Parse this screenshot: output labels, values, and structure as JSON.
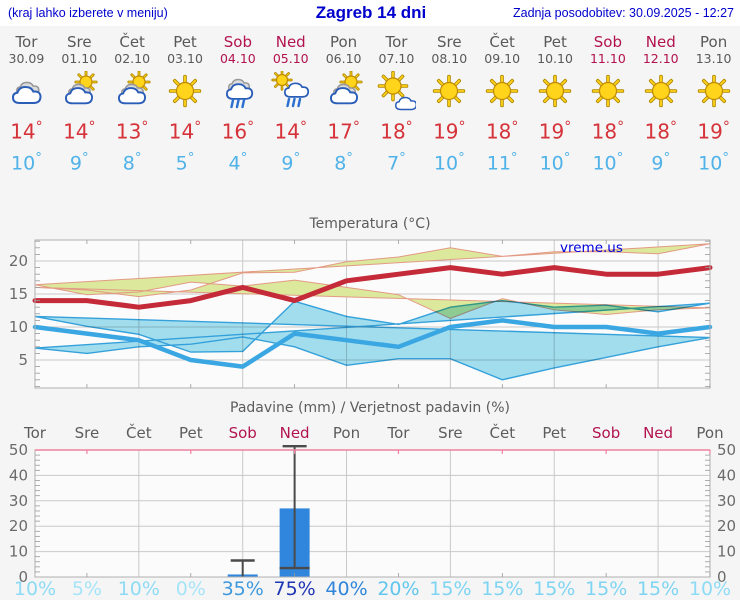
{
  "header": {
    "left_note": "(kraj lahko izberete v meniju)",
    "title": "Zagreb 14 dni",
    "updated": "Zadnja posodobitev: 30.09.2025 - 12:27"
  },
  "watermark": "vreme.us",
  "colors": {
    "header_blue": "#0000cd",
    "text_gray": "#595959",
    "label_gray": "#666666",
    "weekend_red": "#b2134f",
    "tmax_red": "#d53239",
    "tmin_blue": "#4fb2e8",
    "page_bg": "#f5f5f5",
    "plot_bg": "#fbfbfb",
    "grid": "#c9c9c9",
    "axis": "#b0b0b0",
    "tick": "#9a9a9a",
    "band_warm_fill": "#dce89c",
    "band_warm_edge": "#e39a84",
    "band_cold_fill": "#a5e1f2",
    "band_cold_edge": "#36a4de",
    "line_max": "#c42a38",
    "line_min": "#3aa7e2",
    "bar_blue": "#2f86dc",
    "whisker": "#4a4a4a",
    "precip_top": "#f0809d",
    "watermark_blue": "#0000dd",
    "prob_colors": {
      "0": "#a6e4f8",
      "5": "#a6e4f8",
      "10": "#8edbf5",
      "15": "#7ed4f3",
      "20": "#60c6ee",
      "35": "#3f99dd",
      "40": "#3085d9",
      "75": "#1e36b4"
    }
  },
  "days": [
    {
      "name": "Tor",
      "date": "30.09",
      "weekend": false,
      "icon": "cloudy",
      "tmax": "14",
      "tmin": "10",
      "prob": "10%"
    },
    {
      "name": "Sre",
      "date": "01.10",
      "weekend": false,
      "icon": "partly-cloudy",
      "tmax": "14",
      "tmin": "9",
      "prob": "5%"
    },
    {
      "name": "Čet",
      "date": "02.10",
      "weekend": false,
      "icon": "partly-cloudy",
      "tmax": "13",
      "tmin": "8",
      "prob": "10%"
    },
    {
      "name": "Pet",
      "date": "03.10",
      "weekend": false,
      "icon": "sunny",
      "tmax": "14",
      "tmin": "5",
      "prob": "0%"
    },
    {
      "name": "Sob",
      "date": "04.10",
      "weekend": true,
      "icon": "rain",
      "tmax": "16",
      "tmin": "4",
      "prob": "35%"
    },
    {
      "name": "Ned",
      "date": "05.10",
      "weekend": true,
      "icon": "sun-shower",
      "tmax": "14",
      "tmin": "9",
      "prob": "75%"
    },
    {
      "name": "Pon",
      "date": "06.10",
      "weekend": false,
      "icon": "partly-cloudy",
      "tmax": "17",
      "tmin": "8",
      "prob": "40%"
    },
    {
      "name": "Tor",
      "date": "07.10",
      "weekend": false,
      "icon": "mostly-sunny",
      "tmax": "18",
      "tmin": "7",
      "prob": "20%"
    },
    {
      "name": "Sre",
      "date": "08.10",
      "weekend": false,
      "icon": "sunny",
      "tmax": "19",
      "tmin": "10",
      "prob": "15%"
    },
    {
      "name": "Čet",
      "date": "09.10",
      "weekend": false,
      "icon": "sunny",
      "tmax": "18",
      "tmin": "11",
      "prob": "15%"
    },
    {
      "name": "Pet",
      "date": "10.10",
      "weekend": false,
      "icon": "sunny",
      "tmax": "19",
      "tmin": "10",
      "prob": "15%"
    },
    {
      "name": "Sob",
      "date": "11.10",
      "weekend": true,
      "icon": "sunny",
      "tmax": "18",
      "tmin": "10",
      "prob": "15%"
    },
    {
      "name": "Ned",
      "date": "12.10",
      "weekend": true,
      "icon": "sunny",
      "tmax": "18",
      "tmin": "9",
      "prob": "15%"
    },
    {
      "name": "Pon",
      "date": "13.10",
      "weekend": false,
      "icon": "sunny",
      "tmax": "19",
      "tmin": "10",
      "prob": "10%"
    }
  ],
  "chart_data": [
    {
      "type": "line",
      "title": "Temperatura (°C)",
      "categories": [
        "30.09",
        "01.10",
        "02.10",
        "03.10",
        "04.10",
        "05.10",
        "06.10",
        "07.10",
        "08.10",
        "09.10",
        "10.10",
        "11.10",
        "12.10",
        "13.10"
      ],
      "series": [
        {
          "name": "t_max",
          "values": [
            14,
            14,
            13,
            14,
            16,
            14,
            17,
            18,
            19,
            18,
            19,
            18,
            18,
            19
          ]
        },
        {
          "name": "t_max_range_upper",
          "values": [
            16,
            15.6,
            14.6,
            15.6,
            18.2,
            18.3,
            19.9,
            20.6,
            22,
            20.7,
            21.4,
            21.4,
            21.1,
            22.6
          ]
        },
        {
          "name": "t_max_range_lower",
          "values": [
            12.9,
            12.6,
            11.9,
            12.6,
            14.3,
            11.3,
            14.9,
            16,
            17.1,
            16.2,
            16.8,
            15.3,
            14.9,
            16.4
          ]
        },
        {
          "name": "t_min",
          "values": [
            10,
            9,
            8,
            5,
            4,
            9,
            8,
            7,
            10,
            11,
            10,
            10,
            9,
            10
          ]
        },
        {
          "name": "t_min_range_upper",
          "values": [
            11.6,
            10.1,
            8.9,
            6.2,
            6.3,
            13.9,
            11.6,
            10.4,
            13,
            14,
            13,
            13.3,
            12.3,
            13.6
          ]
        },
        {
          "name": "t_min_range_lower",
          "values": [
            8.4,
            7,
            5.4,
            3.8,
            2,
            5.2,
            5.2,
            4.2,
            7,
            8.5,
            7.4,
            7,
            6,
            6.8
          ]
        }
      ],
      "ylim": [
        0.8,
        23.2
      ],
      "yticks": [
        5,
        10,
        15,
        20
      ],
      "grid": true,
      "legend": "none",
      "watermark": "vreme.us"
    },
    {
      "type": "bar",
      "title": "Padavine (mm) / Verjetnost padavin (%)",
      "categories": [
        "Tor",
        "Sre",
        "Čet",
        "Pet",
        "Sob",
        "Ned",
        "Pon",
        "Tor",
        "Sre",
        "Čet",
        "Pet",
        "Sob",
        "Ned",
        "Pon"
      ],
      "weekend_flags": [
        false,
        false,
        false,
        false,
        true,
        true,
        false,
        false,
        false,
        false,
        false,
        true,
        true,
        false
      ],
      "precip_mm": [
        0,
        0,
        0,
        0,
        1,
        27,
        0,
        0,
        0,
        0,
        0,
        0,
        0,
        0
      ],
      "whiskers": [
        null,
        null,
        null,
        null,
        [
          0,
          6.5
        ],
        [
          3.5,
          51.5
        ],
        null,
        null,
        null,
        null,
        null,
        null,
        null,
        null
      ],
      "probability_pct": [
        10,
        5,
        10,
        0,
        35,
        75,
        40,
        20,
        15,
        15,
        15,
        15,
        15,
        10
      ],
      "ylim": [
        0,
        50
      ],
      "yticks": [
        0,
        10,
        20,
        30,
        40,
        50
      ],
      "grid": true,
      "legend": "none"
    }
  ]
}
